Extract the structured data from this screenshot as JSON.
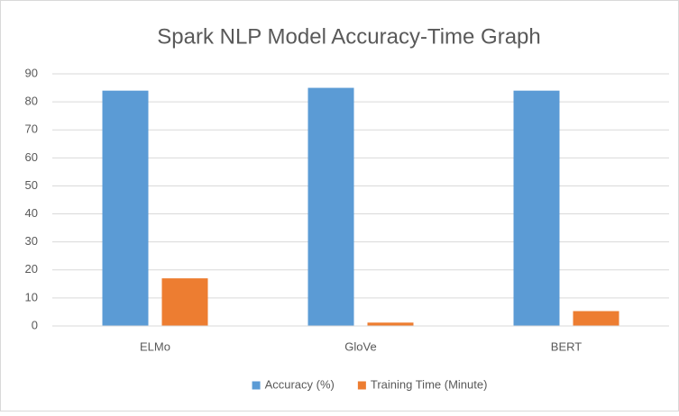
{
  "chart_data": {
    "type": "bar",
    "title": "Spark NLP Model Accuracy-Time Graph",
    "categories": [
      "ELMo",
      "GloVe",
      "BERT"
    ],
    "series": [
      {
        "name": "Accuracy (%)",
        "color": "#5b9bd5",
        "values": [
          84,
          85,
          84
        ]
      },
      {
        "name": "Training Time (Minute)",
        "color": "#ed7d31",
        "values": [
          17,
          1.2,
          5.3
        ]
      }
    ],
    "ylim": [
      0,
      90
    ],
    "yticks": [
      0,
      10,
      20,
      30,
      40,
      50,
      60,
      70,
      80,
      90
    ],
    "grid": true,
    "legend": "bottom"
  }
}
